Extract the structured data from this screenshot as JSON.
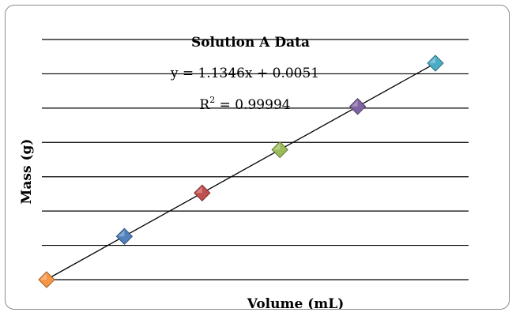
{
  "chart_data": {
    "type": "scatter",
    "title": "Solution A Data",
    "xlabel": "Volume (mL)",
    "ylabel": "Mass (g)",
    "x_axis_tick_labels_visible": false,
    "y_axis_tick_labels_visible": false,
    "horizontal_grid": true,
    "legend": "none",
    "points": [
      {
        "x": 0,
        "y": 0,
        "color": "#f79646"
      },
      {
        "x": 1,
        "y": 1.1346,
        "color": "#4f81bd"
      },
      {
        "x": 2,
        "y": 2.2743,
        "color": "#c0504d"
      },
      {
        "x": 3,
        "y": 3.4089,
        "color": "#9bbb59"
      },
      {
        "x": 4,
        "y": 4.5435,
        "color": "#8064a2"
      },
      {
        "x": 5,
        "y": 5.6781,
        "color": "#4bacc6"
      }
    ],
    "trendline": {
      "type": "linear",
      "slope": 1.1346,
      "intercept": 0.0051,
      "equation": "y = 1.1346x + 0.0051",
      "r2_prefix": "R",
      "r2_sup": "2",
      "r2_value": " = 0.99994"
    },
    "xlim": [
      0,
      5
    ],
    "ylim": [
      0,
      6.3
    ]
  }
}
